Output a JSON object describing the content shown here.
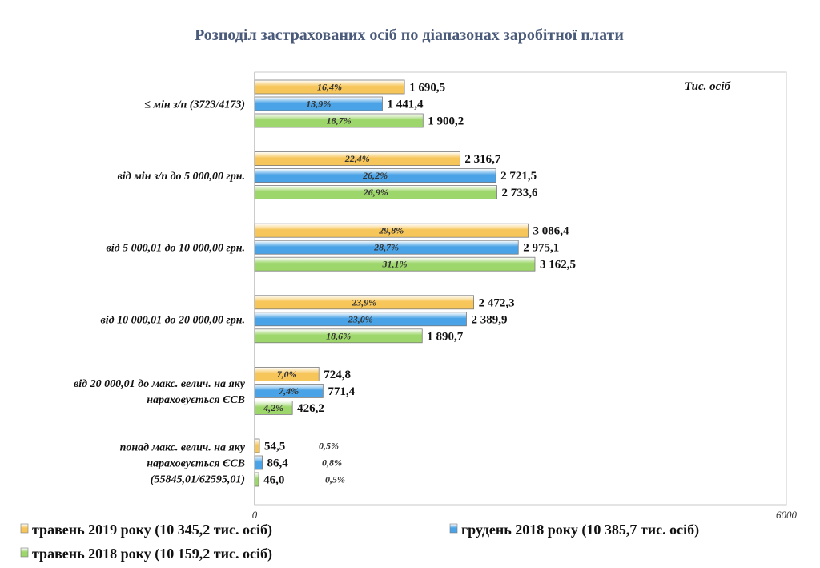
{
  "chart_data": {
    "type": "bar",
    "orientation": "horizontal",
    "title": "Розподіл застрахованих осіб по діапазонах заробітної плати",
    "unit_label": "Тис. осіб",
    "xlim": [
      0,
      6000
    ],
    "x_ticks": [
      "0",
      "6000"
    ],
    "grid": false,
    "legend_position": "bottom",
    "categories": [
      [
        "≤ мін з/п (3723/4173)"
      ],
      [
        "від мін з/п до 5 000,00 грн."
      ],
      [
        "від 5 000,01 до 10 000,00 грн."
      ],
      [
        "від 10 000,01 до 20 000,00 грн."
      ],
      [
        "від 20 000,01 до макс. велич. на яку",
        "нараховується ЄСВ"
      ],
      [
        "понад  макс. велич. на яку",
        "нараховується ЄСВ",
        "(55845,01/62595,01)"
      ]
    ],
    "series": [
      {
        "name": "травень 2019 року (10 345,2 тис. осіб)",
        "color": "#f7c65a",
        "values": [
          1690.5,
          2316.7,
          3086.4,
          2472.3,
          724.8,
          54.5
        ],
        "value_labels": [
          "1 690,5",
          "2 316,7",
          "3 086,4",
          "2 472,3",
          "724,8",
          "54,5"
        ],
        "pct_labels": [
          "16,4%",
          "22,4%",
          "29,8%",
          "23,9%",
          "7,0%",
          "0,5%"
        ]
      },
      {
        "name": "грудень 2018 року (10 385,7 тис. осіб)",
        "color": "#4aa3e6",
        "values": [
          1441.4,
          2721.5,
          2975.1,
          2389.9,
          771.4,
          86.4
        ],
        "value_labels": [
          "1 441,4",
          "2 721,5",
          "2 975,1",
          "2 389,9",
          "771,4",
          "86,4"
        ],
        "pct_labels": [
          "13,9%",
          "26,2%",
          "28,7%",
          "23,0%",
          "7,4%",
          "0,8%"
        ]
      },
      {
        "name": "травень 2018 року (10 159,2 тис. осіб)",
        "color": "#9dd66a",
        "values": [
          1900.2,
          2733.6,
          3162.5,
          1890.7,
          426.2,
          46.0
        ],
        "value_labels": [
          "1 900,2",
          "2 733,6",
          "3 162,5",
          "1 890,7",
          "426,2",
          "46,0"
        ],
        "pct_labels": [
          "18,7%",
          "26,9%",
          "31,1%",
          "18,6%",
          "4,2%",
          "0,5%"
        ]
      }
    ]
  }
}
